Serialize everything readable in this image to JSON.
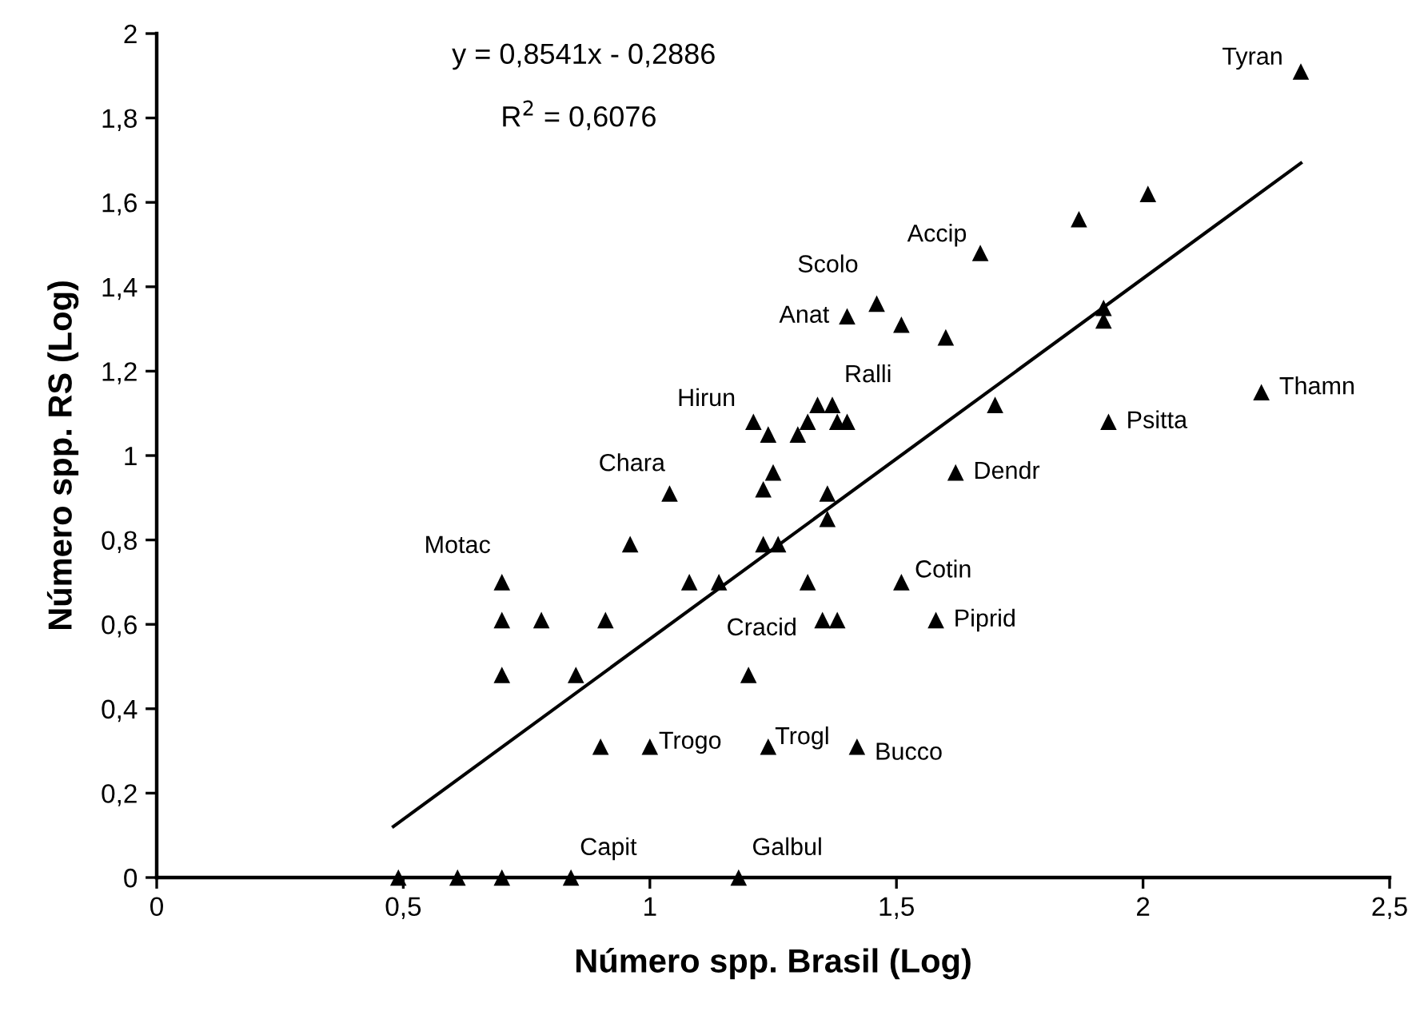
{
  "chart_data": {
    "type": "scatter",
    "xlabel": "Número spp. Brasil (Log)",
    "ylabel": "Número spp. RS (Log)",
    "xlim": [
      0,
      2.5
    ],
    "ylim": [
      0,
      2
    ],
    "xticks": [
      0,
      {
        "value": 0.5,
        "label": "0,5"
      },
      1,
      {
        "value": 1.5,
        "label": "1,5"
      },
      2,
      {
        "value": 2.5,
        "label": "2,5"
      }
    ],
    "yticks": [
      0,
      {
        "value": 0.2,
        "label": "0,2"
      },
      {
        "value": 0.4,
        "label": "0,4"
      },
      {
        "value": 0.6,
        "label": "0,6"
      },
      {
        "value": 0.8,
        "label": "0,8"
      },
      1,
      {
        "value": 1.2,
        "label": "1,2"
      },
      {
        "value": 1.4,
        "label": "1,4"
      },
      {
        "value": 1.6,
        "label": "1,6"
      },
      {
        "value": 1.8,
        "label": "1,8"
      },
      2
    ],
    "grid": false,
    "series": [
      {
        "color": "#000000",
        "marker": "triangle",
        "x": [
          0.49,
          0.61,
          0.7,
          0.84,
          1.18,
          0.7,
          0.7,
          0.78,
          0.91,
          0.7,
          0.85,
          0.9,
          1.0,
          1.2,
          1.24,
          1.42,
          1.14,
          1.32,
          1.51,
          1.35,
          1.38,
          1.58,
          0.96,
          1.08,
          1.23,
          1.26,
          1.04,
          1.23,
          1.25,
          1.36,
          1.36,
          1.62,
          1.21,
          1.24,
          1.3,
          1.32,
          1.34,
          1.37,
          1.38,
          1.4,
          1.7,
          1.93,
          2.24,
          1.4,
          1.46,
          1.51,
          1.6,
          1.67,
          1.87,
          2.01,
          1.92,
          1.92,
          2.32
        ],
        "values": [
          0,
          0,
          0,
          0,
          0,
          0.7,
          0.61,
          0.61,
          0.61,
          0.48,
          0.48,
          0.31,
          0.31,
          0.48,
          0.31,
          0.31,
          0.7,
          0.7,
          0.7,
          0.61,
          0.61,
          0.61,
          0.79,
          0.7,
          0.79,
          0.79,
          0.91,
          0.92,
          0.96,
          0.91,
          0.85,
          0.96,
          1.08,
          1.05,
          1.05,
          1.08,
          1.12,
          1.12,
          1.08,
          1.08,
          1.12,
          1.08,
          1.15,
          1.33,
          1.36,
          1.31,
          1.28,
          1.48,
          1.56,
          1.62,
          1.35,
          1.32,
          1.91
        ]
      },
      {
        "type": "line",
        "color": "#000000",
        "marker": "none",
        "line_style": "solid",
        "x": [
          0.48,
          2.32
        ],
        "values": [
          0.121,
          1.693
        ]
      }
    ],
    "annotations": [
      "y = 0,8541x - 0,2886",
      "R$^{2}$ = 0,6076",
      {
        "text": "Tyran",
        "x": 2.32,
        "y": 1.91
      },
      {
        "text": "Accip",
        "x": 1.67,
        "y": 1.48
      },
      {
        "text": "Scolo",
        "x": 1.46,
        "y": 1.36
      },
      {
        "text": "Anat",
        "x": 1.4,
        "y": 1.33
      },
      {
        "text": "Ralli",
        "x": 1.51,
        "y": 1.31
      },
      {
        "text": "Hirun",
        "x": 1.21,
        "y": 1.08
      },
      {
        "text": "Chara",
        "x": 1.04,
        "y": 0.91
      },
      {
        "text": "Motac",
        "x": 0.7,
        "y": 0.7
      },
      {
        "text": "Cracid",
        "x": 1.33,
        "y": 0.61
      },
      {
        "text": "Cotin",
        "x": 1.51,
        "y": 0.7
      },
      {
        "text": "Piprid",
        "x": 1.58,
        "y": 0.61
      },
      {
        "text": "Dendr",
        "x": 1.62,
        "y": 0.96
      },
      {
        "text": "Psitta",
        "x": 1.93,
        "y": 1.08
      },
      {
        "text": "Thamn",
        "x": 2.24,
        "y": 1.15
      },
      {
        "text": "Trogo",
        "x": 1.0,
        "y": 0.31
      },
      {
        "text": "Trogl",
        "x": 1.24,
        "y": 0.31
      },
      {
        "text": "Bucco",
        "x": 1.42,
        "y": 0.31
      },
      {
        "text": "Capit",
        "x": 0.84,
        "y": 0
      },
      {
        "text": "Galbul",
        "x": 1.18,
        "y": 0
      }
    ]
  }
}
